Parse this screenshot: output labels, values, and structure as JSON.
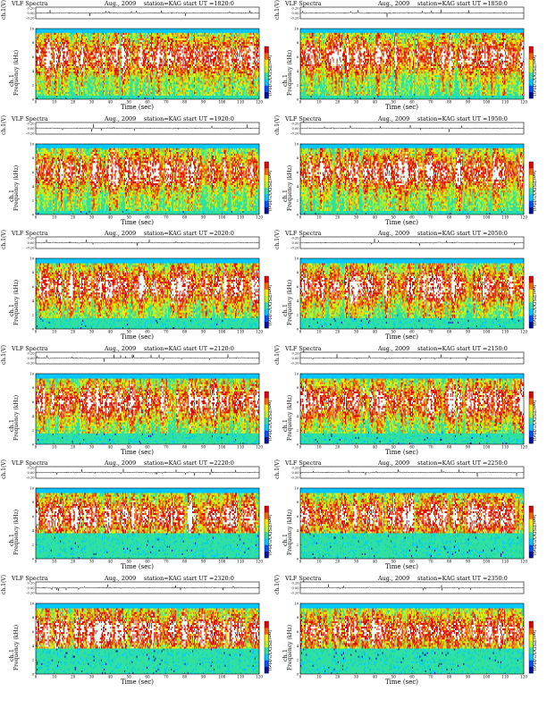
{
  "panel_text": {
    "title_left": "VLF Spectra",
    "date": "Aug., 2009",
    "station": "station=KAG",
    "ut_prefix": "start  UT =",
    "top_ylabel": "ch.1(V)",
    "top_yticks": [
      "0.20",
      "0.00",
      "-0.20"
    ],
    "freq_ylabel": "Frequency  (kHz)",
    "ch_label": "ch.1",
    "xlabel": "Time  (sec)",
    "colorbar_label": "log(PSD(V²/Hz))"
  },
  "chart_data": [
    {
      "type": "heatmap",
      "start_ut": "1820:0",
      "x": [
        0,
        10,
        20,
        30,
        40,
        50,
        60,
        70,
        80,
        90,
        100,
        110,
        120
      ],
      "y": [
        0,
        2,
        4,
        6,
        8,
        10
      ],
      "xlim": [
        0,
        120
      ],
      "ylim": [
        0,
        10
      ],
      "xlabel": "Time  (sec)",
      "ylabel": "Frequency  (kHz)"
    },
    {
      "type": "heatmap",
      "start_ut": "1850:0",
      "x": [
        0,
        10,
        20,
        30,
        40,
        50,
        60,
        70,
        80,
        90,
        100,
        110,
        120
      ],
      "y": [
        0,
        2,
        4,
        6,
        8,
        10
      ],
      "xlim": [
        0,
        120
      ],
      "ylim": [
        0,
        10
      ],
      "xlabel": "Time  (sec)",
      "ylabel": "Frequency  (kHz)"
    },
    {
      "type": "heatmap",
      "start_ut": "1920:0",
      "x": [
        0,
        10,
        20,
        30,
        40,
        50,
        60,
        70,
        80,
        90,
        100,
        110,
        120
      ],
      "y": [
        0,
        2,
        4,
        6,
        8,
        10
      ],
      "xlim": [
        0,
        120
      ],
      "ylim": [
        0,
        10
      ],
      "xlabel": "Time  (sec)",
      "ylabel": "Frequency  (kHz)"
    },
    {
      "type": "heatmap",
      "start_ut": "1950:0",
      "x": [
        0,
        10,
        20,
        30,
        40,
        50,
        60,
        70,
        80,
        90,
        100,
        110,
        120
      ],
      "y": [
        0,
        2,
        4,
        6,
        8,
        10
      ],
      "xlim": [
        0,
        120
      ],
      "ylim": [
        0,
        10
      ],
      "xlabel": "Time  (sec)",
      "ylabel": "Frequency  (kHz)"
    },
    {
      "type": "heatmap",
      "start_ut": "2020:0",
      "x": [
        0,
        10,
        20,
        30,
        40,
        50,
        60,
        70,
        80,
        90,
        100,
        110,
        120
      ],
      "y": [
        0,
        2,
        4,
        6,
        8,
        10
      ],
      "xlim": [
        0,
        120
      ],
      "ylim": [
        0,
        10
      ],
      "xlabel": "Time  (sec)",
      "ylabel": "Frequency  (kHz)"
    },
    {
      "type": "heatmap",
      "start_ut": "2050:0",
      "x": [
        0,
        10,
        20,
        30,
        40,
        50,
        60,
        70,
        80,
        90,
        100,
        110,
        120
      ],
      "y": [
        0,
        2,
        4,
        6,
        8,
        10
      ],
      "xlim": [
        0,
        120
      ],
      "ylim": [
        0,
        10
      ],
      "xlabel": "Time  (sec)",
      "ylabel": "Frequency  (kHz)"
    },
    {
      "type": "heatmap",
      "start_ut": "2120:0",
      "x": [
        0,
        10,
        20,
        30,
        40,
        50,
        60,
        70,
        80,
        90,
        100,
        110,
        120
      ],
      "y": [
        0,
        2,
        4,
        6,
        8,
        10
      ],
      "xlim": [
        0,
        120
      ],
      "ylim": [
        0,
        10
      ],
      "xlabel": "Time  (sec)",
      "ylabel": "Frequency  (kHz)"
    },
    {
      "type": "heatmap",
      "start_ut": "2150:0",
      "x": [
        0,
        10,
        20,
        30,
        40,
        50,
        60,
        70,
        80,
        90,
        100,
        110,
        120
      ],
      "y": [
        0,
        2,
        4,
        6,
        8,
        10
      ],
      "xlim": [
        0,
        120
      ],
      "ylim": [
        0,
        10
      ],
      "xlabel": "Time  (sec)",
      "ylabel": "Frequency  (kHz)"
    },
    {
      "type": "heatmap",
      "start_ut": "2220:0",
      "x": [
        0,
        10,
        20,
        30,
        40,
        50,
        60,
        70,
        80,
        90,
        100,
        110,
        120
      ],
      "y": [
        0,
        2,
        4,
        6,
        8,
        10
      ],
      "xlim": [
        0,
        120
      ],
      "ylim": [
        0,
        10
      ],
      "xlabel": "Time  (sec)",
      "ylabel": "Frequency  (kHz)"
    },
    {
      "type": "heatmap",
      "start_ut": "2250:0",
      "x": [
        0,
        10,
        20,
        30,
        40,
        50,
        60,
        70,
        80,
        90,
        100,
        110,
        120
      ],
      "y": [
        0,
        2,
        4,
        6,
        8,
        10
      ],
      "xlim": [
        0,
        120
      ],
      "ylim": [
        0,
        10
      ],
      "xlabel": "Time  (sec)",
      "ylabel": "Frequency  (kHz)"
    },
    {
      "type": "heatmap",
      "start_ut": "2320:0",
      "x": [
        0,
        10,
        20,
        30,
        40,
        50,
        60,
        70,
        80,
        90,
        100,
        110,
        120
      ],
      "y": [
        0,
        2,
        4,
        6,
        8,
        10
      ],
      "xlim": [
        0,
        120
      ],
      "ylim": [
        0,
        10
      ],
      "xlabel": "Time  (sec)",
      "ylabel": "Frequency  (kHz)"
    },
    {
      "type": "heatmap",
      "start_ut": "2350:0",
      "x": [
        0,
        10,
        20,
        30,
        40,
        50,
        60,
        70,
        80,
        90,
        100,
        110,
        120
      ],
      "y": [
        0,
        2,
        4,
        6,
        8,
        10
      ],
      "xlim": [
        0,
        120
      ],
      "ylim": [
        0,
        10
      ],
      "xlabel": "Time  (sec)",
      "ylabel": "Frequency  (kHz)"
    }
  ],
  "colors": {
    "colorbar": [
      "#0010a0",
      "#0050ff",
      "#00c8ff",
      "#30e0a0",
      "#b8f020",
      "#ffe800",
      "#ff6000",
      "#e80000",
      "#ffffff"
    ],
    "background_band": "#30e0a0",
    "top_band": "#00c8ff"
  }
}
